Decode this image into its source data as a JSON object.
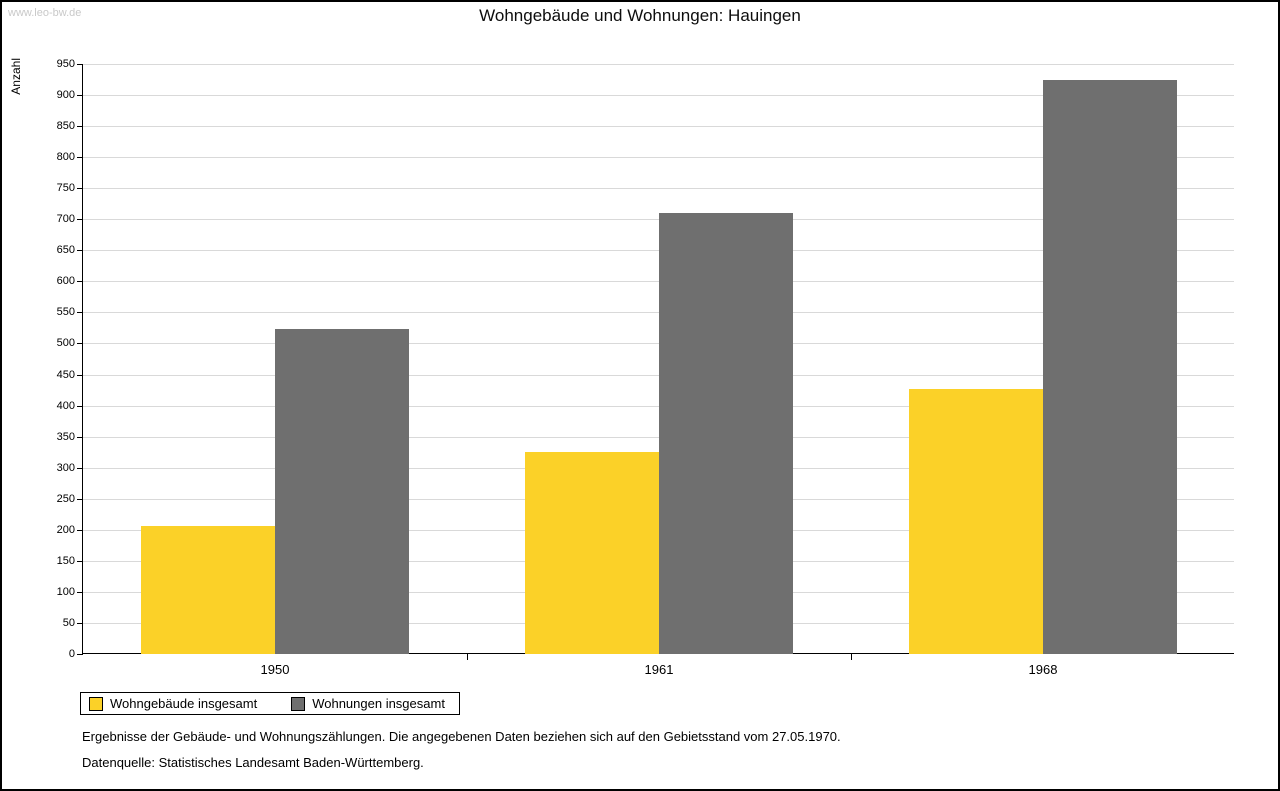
{
  "watermark": "www.leo-bw.de",
  "title": "Wohngebäude und Wohnungen: Hauingen",
  "footer": {
    "line1": "Ergebnisse der Gebäude- und Wohnungszählungen. Die angegebenen Daten beziehen sich auf den Gebietsstand vom 27.05.1970.",
    "line2": "Datenquelle: Statistisches Landesamt Baden-Württemberg."
  },
  "chart_data": {
    "type": "bar",
    "title": "Wohngebäude und Wohnungen: Hauingen",
    "xlabel": "",
    "ylabel": "Anzahl",
    "categories": [
      "1950",
      "1961",
      "1968"
    ],
    "series": [
      {
        "name": "Wohngebäude insgesamt",
        "color": "#FBD128",
        "values": [
          206,
          326,
          427
        ]
      },
      {
        "name": "Wohnungen insgesamt",
        "color": "#6F6F6F",
        "values": [
          524,
          710,
          924
        ]
      }
    ],
    "ylim": [
      0,
      950
    ],
    "ytick_step": 50,
    "grid": true,
    "legend_position": "bottom-left",
    "grid_color": "#d9d9d9"
  }
}
